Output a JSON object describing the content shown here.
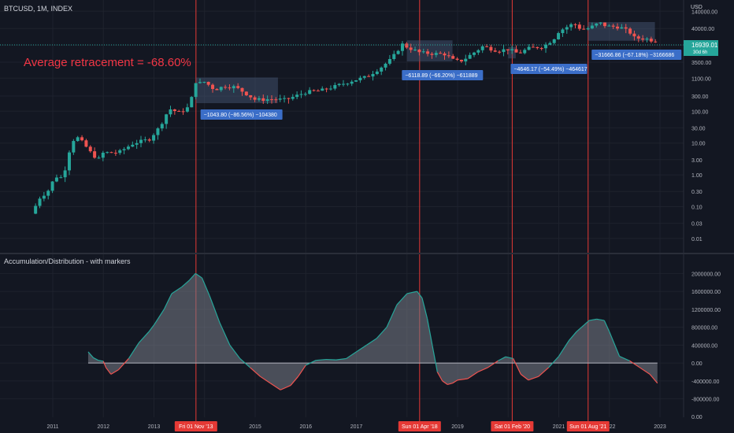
{
  "header": {
    "symbol_line": "BTCUSD, 1M, INDEX"
  },
  "price_axis": {
    "currency": "USD",
    "current_price": "16939.01",
    "countdown": "30d 6h",
    "ticks": [
      "140000.00",
      "40000.00",
      "12000.00",
      "3500.00",
      "1100.00",
      "300.00",
      "100.00",
      "30.00",
      "10.00",
      "3.00",
      "1.00",
      "0.30",
      "0.10",
      "0.03",
      "0.01"
    ]
  },
  "annotation": {
    "text": "Average retracement = -68.60%"
  },
  "indicator": {
    "title": "Accumulation/Distribution - with markers",
    "ticks": [
      "2000000.00",
      "1600000.00",
      "1200000.00",
      "800000.00",
      "400000.00",
      "0.00",
      "-400000.00",
      "-800000.00",
      "0.00"
    ]
  },
  "time_axis": {
    "labels": [
      "2011",
      "2012",
      "2013",
      "2015",
      "2016",
      "2017",
      "2019",
      "2021",
      "2022",
      "2023"
    ],
    "highlight_labels": [
      "Fri 01 Nov '13",
      "Sun 01 Apr '18",
      "Sat 01 Feb '20",
      "Sun 01 Aug '21"
    ]
  },
  "measure_boxes": [
    {
      "label": "−1043.80 (−86.56%) −104380"
    },
    {
      "label": "−6118.89 (−66.20%) −611889"
    },
    {
      "label": "−4646.17 (−54.49%) −464617"
    },
    {
      "label": "−31666.86 (−67.18%) −3166686"
    }
  ],
  "colors": {
    "background": "#131722",
    "up": "#26a69a",
    "down": "#ef5350",
    "vline": "#e53935",
    "annotation": "#f23645",
    "measure_box": "#4a5a7a",
    "measure_label": "#3b6ec8"
  },
  "chart_data": [
    {
      "type": "candlestick",
      "scale": "log",
      "ylim": [
        0.005,
        200000
      ],
      "xlim": [
        2010.5,
        2023.5
      ],
      "close_series": [
        [
          2010.58,
          0.06
        ],
        [
          2010.75,
          0.2
        ],
        [
          2010.9,
          0.3
        ],
        [
          2011.05,
          0.9
        ],
        [
          2011.2,
          0.8
        ],
        [
          2011.35,
          8
        ],
        [
          2011.45,
          17
        ],
        [
          2011.6,
          10
        ],
        [
          2011.75,
          5
        ],
        [
          2011.9,
          3
        ],
        [
          2012.0,
          5
        ],
        [
          2012.3,
          5
        ],
        [
          2012.6,
          10
        ],
        [
          2012.9,
          13
        ],
        [
          2013.1,
          30
        ],
        [
          2013.3,
          120
        ],
        [
          2013.5,
          90
        ],
        [
          2013.7,
          140
        ],
        [
          2013.83,
          900
        ],
        [
          2013.92,
          750
        ],
        [
          2014.0,
          850
        ],
        [
          2014.2,
          480
        ],
        [
          2014.4,
          620
        ],
        [
          2014.6,
          580
        ],
        [
          2014.8,
          380
        ],
        [
          2015.0,
          230
        ],
        [
          2015.3,
          240
        ],
        [
          2015.6,
          230
        ],
        [
          2015.8,
          300
        ],
        [
          2016.0,
          400
        ],
        [
          2016.3,
          450
        ],
        [
          2016.6,
          620
        ],
        [
          2016.9,
          900
        ],
        [
          2017.2,
          1200
        ],
        [
          2017.5,
          2500
        ],
        [
          2017.7,
          4500
        ],
        [
          2017.9,
          13000
        ],
        [
          2018.0,
          10500
        ],
        [
          2018.25,
          7000
        ],
        [
          2018.5,
          6500
        ],
        [
          2018.75,
          6300
        ],
        [
          2018.95,
          3700
        ],
        [
          2019.1,
          4000
        ],
        [
          2019.4,
          8500
        ],
        [
          2019.5,
          11000
        ],
        [
          2019.8,
          8000
        ],
        [
          2020.0,
          9000
        ],
        [
          2020.2,
          6500
        ],
        [
          2020.4,
          9500
        ],
        [
          2020.7,
          11000
        ],
        [
          2020.9,
          19000
        ],
        [
          2021.0,
          33000
        ],
        [
          2021.3,
          58000
        ],
        [
          2021.45,
          37000
        ],
        [
          2021.6,
          41000
        ],
        [
          2021.8,
          61000
        ],
        [
          2021.95,
          47000
        ],
        [
          2022.2,
          45000
        ],
        [
          2022.4,
          31000
        ],
        [
          2022.5,
          20000
        ],
        [
          2022.7,
          19500
        ],
        [
          2022.85,
          17000
        ],
        [
          2022.95,
          16939
        ]
      ]
    },
    {
      "type": "area",
      "name": "Accumulation/Distribution",
      "ylim": [
        -1000000,
        2200000
      ],
      "x": [
        2011.7,
        2011.8,
        2011.9,
        2012.0,
        2012.05,
        2012.15,
        2012.3,
        2012.5,
        2012.7,
        2012.9,
        2013.0,
        2013.2,
        2013.35,
        2013.55,
        2013.7,
        2013.82,
        2013.95,
        2014.1,
        2014.3,
        2014.5,
        2014.7,
        2014.9,
        2015.1,
        2015.3,
        2015.5,
        2015.7,
        2015.85,
        2016.0,
        2016.2,
        2016.4,
        2016.6,
        2016.8,
        2017.0,
        2017.2,
        2017.4,
        2017.6,
        2017.8,
        2018.0,
        2018.2,
        2018.3,
        2018.4,
        2018.5,
        2018.6,
        2018.7,
        2018.8,
        2018.9,
        2019.0,
        2019.2,
        2019.4,
        2019.6,
        2019.8,
        2019.95,
        2020.1,
        2020.25,
        2020.4,
        2020.6,
        2020.8,
        2021.0,
        2021.2,
        2021.35,
        2021.5,
        2021.6,
        2021.75,
        2021.9,
        2022.0,
        2022.2,
        2022.4,
        2022.6,
        2022.8,
        2022.95
      ],
      "values": [
        250000,
        120000,
        60000,
        40000,
        -100000,
        -250000,
        -150000,
        100000,
        450000,
        700000,
        850000,
        1200000,
        1550000,
        1700000,
        1850000,
        2000000,
        1900000,
        1500000,
        900000,
        400000,
        100000,
        -100000,
        -300000,
        -450000,
        -600000,
        -500000,
        -300000,
        -50000,
        60000,
        80000,
        70000,
        100000,
        250000,
        400000,
        550000,
        800000,
        1300000,
        1550000,
        1600000,
        1450000,
        1000000,
        400000,
        -200000,
        -400000,
        -480000,
        -450000,
        -380000,
        -350000,
        -200000,
        -100000,
        50000,
        140000,
        100000,
        -250000,
        -380000,
        -300000,
        -100000,
        150000,
        500000,
        700000,
        850000,
        950000,
        980000,
        950000,
        700000,
        150000,
        50000,
        -100000,
        -250000,
        -450000
      ]
    }
  ]
}
